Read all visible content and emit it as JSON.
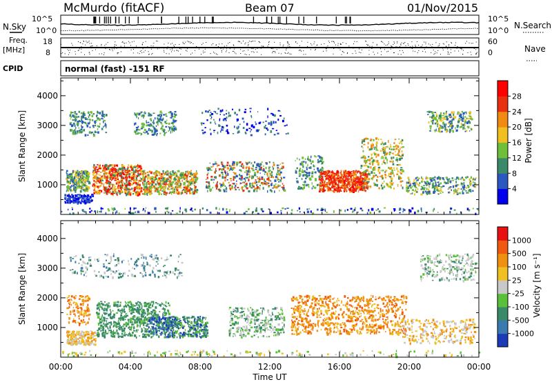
{
  "header": {
    "station": "McMurdo (fitACF)",
    "beam": "Beam 07",
    "date": "01/Nov/2015"
  },
  "top_strip": {
    "left_label": "N.Sky",
    "right_label": "N.Search",
    "left_ticks": [
      "10^5",
      "10^0"
    ],
    "right_ticks": [
      "10^5",
      "10^0"
    ],
    "freq_label_1": "Freq.",
    "freq_label_2": "[MHz]",
    "freq_ticks": [
      "18",
      "8"
    ],
    "nave_label": "Nave",
    "nave_ticks": [
      "60",
      "0"
    ],
    "cpid_label": "CPID",
    "cpid_text": "normal (fast) -151 RF"
  },
  "chart_data": [
    {
      "type": "heatmap",
      "name": "power",
      "ylabel": "Slant Range [km]",
      "ylim": [
        0,
        4600
      ],
      "yticks": [
        "1000",
        "2000",
        "3000",
        "4000"
      ],
      "colorbar_label": "Power [dB]",
      "colorbar_ticks": [
        "4",
        "8",
        "12",
        "16",
        "20",
        "24",
        "28"
      ],
      "colors": [
        "#0000ee",
        "#2a58c0",
        "#3a8a6a",
        "#6fbf3a",
        "#f0c020",
        "#f08a10",
        "#e83010",
        "#ff0000"
      ]
    },
    {
      "type": "heatmap",
      "name": "velocity",
      "ylabel": "Slant Range [km]",
      "ylim": [
        0,
        4600
      ],
      "yticks": [
        "1000",
        "2000",
        "3000",
        "4000"
      ],
      "colorbar_label": "Velocity [m s⁻¹]",
      "colorbar_ticks": [
        "1000",
        "500",
        "100",
        "25",
        "-25",
        "-100",
        "-500",
        "-1000"
      ],
      "colors": [
        "#1a3ab8",
        "#3a7ab0",
        "#3a8a6a",
        "#5ac03a",
        "#c8c8c8",
        "#f0c020",
        "#f09010",
        "#f05a10",
        "#e81010"
      ],
      "xlabel": "Time UT",
      "xticks": [
        "00:00",
        "04:00",
        "08:00",
        "12:00",
        "16:00",
        "20:00",
        "00:00"
      ]
    }
  ]
}
